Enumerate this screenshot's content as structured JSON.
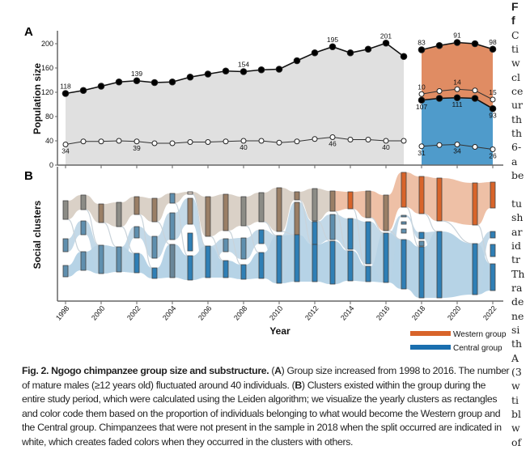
{
  "figure": {
    "panel_a_letter": "A",
    "panel_b_letter": "B",
    "caption": {
      "label": "Fig. 2. Ngogo chimpanzee group size and substructure.",
      "text_parts": [
        " (",
        "A",
        ") Group size increased from 1998 to 2016. The number of mature males (≥12 years old) fluctuated around 40 individuals. (",
        "B",
        ") Clusters existed within the group during the entire study period, which were calculated using the Leiden algorithm; we visualize the yearly clusters as rectangles and color code them based on the proportion of individuals belonging to what would become the Western group and the Central group. Chimpanzees that were not present in the sample in 2018 when the split occurred are indicated in white, which creates faded colors when they occurred in the clusters with others."
      ]
    }
  },
  "chart_data": [
    {
      "type": "area",
      "panel": "A",
      "ylabel": "Population size",
      "ylim": [
        0,
        220
      ],
      "yticks": [
        "0",
        "40",
        "80",
        "120",
        "160",
        "200"
      ],
      "grid": false,
      "colors": {
        "pre_split_area": "#e0e0e0",
        "western_area": "#e08c63",
        "central_area": "#4f9bcb"
      },
      "pre_split": {
        "years": [
          1998,
          1999,
          2000,
          2001,
          2002,
          2003,
          2004,
          2005,
          2006,
          2007,
          2008,
          2009,
          2010,
          2011,
          2012,
          2013,
          2014,
          2015,
          2016,
          2017
        ],
        "group_size": [
          118,
          123,
          130,
          137,
          139,
          136,
          137,
          145,
          150,
          155,
          154,
          157,
          158,
          172,
          185,
          195,
          185,
          191,
          201,
          179
        ],
        "mature_males": [
          34,
          39,
          39,
          40,
          39,
          36,
          36,
          38,
          38,
          39,
          40,
          40,
          37,
          39,
          43,
          46,
          42,
          42,
          40,
          40
        ],
        "labeled_group_size": [
          "118",
          "",
          "",
          "",
          "139",
          "",
          "",
          "",
          "",
          "",
          "154",
          "",
          "",
          "",
          "",
          "195",
          "",
          "",
          "201",
          ""
        ],
        "labeled_mature_males": [
          "34",
          "",
          "",
          "",
          "39",
          "",
          "",
          "",
          "",
          "",
          "40",
          "",
          "",
          "",
          "",
          "46",
          "",
          "",
          "40",
          ""
        ]
      },
      "post_split": {
        "years": [
          2018,
          2019,
          2020,
          2021,
          2022
        ],
        "western_size": [
          83,
          87,
          91,
          90,
          98
        ],
        "western_males": [
          10,
          12,
          14,
          13,
          15
        ],
        "central_size": [
          107,
          110,
          111,
          110,
          93
        ],
        "central_males": [
          31,
          33,
          34,
          30,
          26
        ],
        "labeled_western_size": [
          "83",
          "",
          "91",
          "",
          "98"
        ],
        "labeled_western_males": [
          "10",
          "",
          "14",
          "",
          "15"
        ],
        "labeled_central_size": [
          "107",
          "",
          "111",
          "",
          "93"
        ],
        "labeled_central_males": [
          "31",
          "",
          "34",
          "",
          "26"
        ]
      }
    },
    {
      "type": "sankey",
      "panel": "B",
      "ylabel": "Social clusters",
      "xlabel": "Year",
      "xticks": [
        "1998",
        "2000",
        "2002",
        "2004",
        "2006",
        "2008",
        "2010",
        "2012",
        "2014",
        "2016",
        "2018",
        "2020",
        "2022"
      ],
      "legend": [
        {
          "name": "Western group",
          "color": "#d8642a"
        },
        {
          "name": "Central group",
          "color": "#1a6faf"
        }
      ],
      "legend_position": "bottom-right"
    }
  ],
  "right_column": {
    "heading": [
      "F",
      "f"
    ],
    "lines": [
      "C",
      "ti",
      "w",
      "cl",
      "ce",
      "ur",
      "th",
      "th",
      "6-",
      "a",
      "be",
      "",
      "tu",
      "sh",
      "ar",
      "id",
      "tr",
      "Th",
      "ra",
      "de",
      "ne",
      "si",
      "th",
      "A",
      "(3",
      "w",
      "ti",
      "bl",
      "w",
      "of"
    ]
  }
}
